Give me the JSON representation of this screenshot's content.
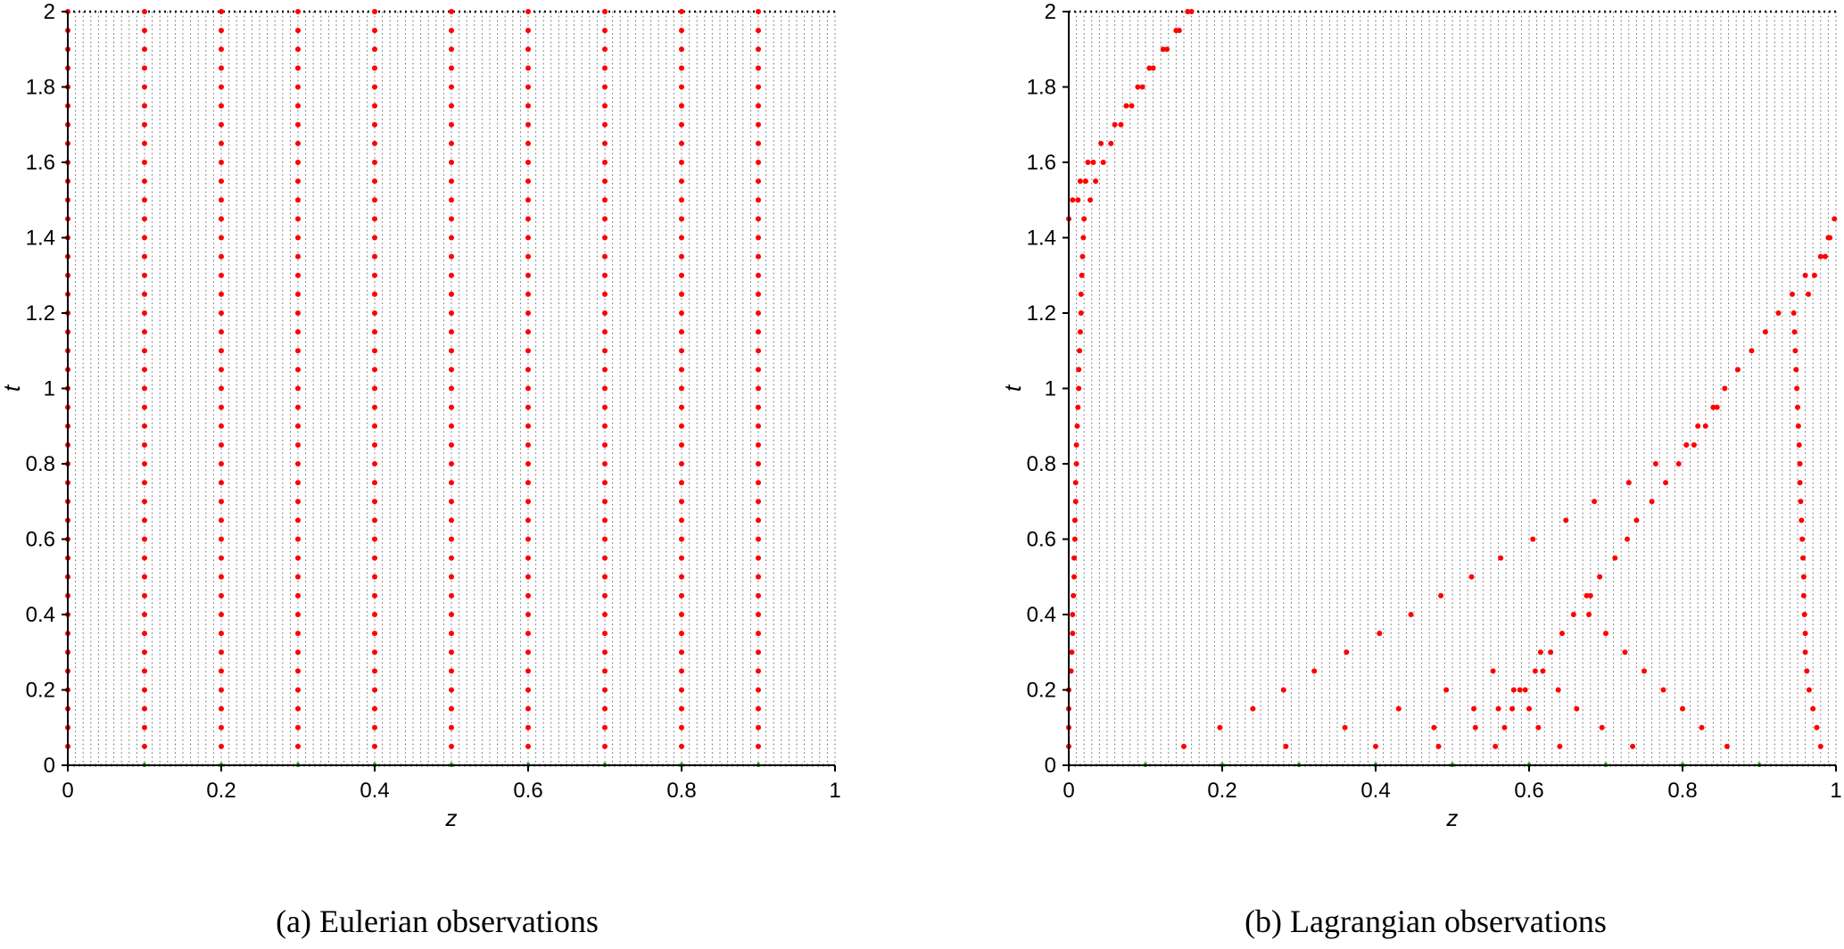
{
  "chart_data": [
    {
      "type": "scatter",
      "panel": "a",
      "caption": "(a) Eulerian observations",
      "xlabel": "z",
      "ylabel": "t",
      "xlim": [
        0,
        1
      ],
      "ylim": [
        0,
        2
      ],
      "xticks": [
        "0",
        "0.2",
        "0.4",
        "0.6",
        "0.8",
        "1"
      ],
      "yticks": [
        "0",
        "0.2",
        "0.4",
        "0.6",
        "0.8",
        "1",
        "1.2",
        "1.4",
        "1.6",
        "1.8",
        "2"
      ],
      "grid": {
        "dx": 0.01,
        "dt": 0.05
      },
      "observation_color": "#ff0000",
      "grid_color": "#555555",
      "sensor_color": "#00aa00",
      "sensor_z": [
        0.1,
        0.2,
        0.3,
        0.4,
        0.5,
        0.6,
        0.7,
        0.8,
        0.9
      ],
      "observations": {
        "z": [
          0.0,
          0.1,
          0.2,
          0.3,
          0.4,
          0.5,
          0.6,
          0.7,
          0.8,
          0.9
        ],
        "t_from": 0.05,
        "t_to": 2.0,
        "t_step": 0.05
      }
    },
    {
      "type": "scatter",
      "panel": "b",
      "caption": "(b) Lagrangian observations",
      "xlabel": "z",
      "ylabel": "t",
      "xlim": [
        0,
        1
      ],
      "ylim": [
        0,
        2
      ],
      "xticks": [
        "0",
        "0.2",
        "0.4",
        "0.6",
        "0.8",
        "1"
      ],
      "yticks": [
        "0",
        "0.2",
        "0.4",
        "0.6",
        "0.8",
        "1",
        "1.2",
        "1.4",
        "1.6",
        "1.8",
        "2"
      ],
      "grid": {
        "dx": 0.01,
        "dt": 0.05
      },
      "observation_color": "#ff0000",
      "grid_color": "#555555",
      "sensor_color": "#00aa00",
      "sensor_z": [
        0.1,
        0.2,
        0.3,
        0.4,
        0.5,
        0.6,
        0.7,
        0.8,
        0.9
      ],
      "observations": [
        [
          0.0,
          0.05
        ],
        [
          0.0,
          0.1
        ],
        [
          0.0,
          0.15
        ],
        [
          0.0,
          0.2
        ],
        [
          0.003,
          0.25
        ],
        [
          0.004,
          0.3
        ],
        [
          0.005,
          0.35
        ],
        [
          0.005,
          0.4
        ],
        [
          0.006,
          0.45
        ],
        [
          0.007,
          0.5
        ],
        [
          0.007,
          0.55
        ],
        [
          0.008,
          0.6
        ],
        [
          0.008,
          0.65
        ],
        [
          0.009,
          0.7
        ],
        [
          0.009,
          0.75
        ],
        [
          0.01,
          0.8
        ],
        [
          0.01,
          0.85
        ],
        [
          0.011,
          0.9
        ],
        [
          0.012,
          0.95
        ],
        [
          0.013,
          1.0
        ],
        [
          0.013,
          1.05
        ],
        [
          0.014,
          1.1
        ],
        [
          0.015,
          1.15
        ],
        [
          0.016,
          1.2
        ],
        [
          0.016,
          1.25
        ],
        [
          0.017,
          1.3
        ],
        [
          0.018,
          1.35
        ],
        [
          0.019,
          1.4
        ],
        [
          0.02,
          1.45
        ],
        [
          0.0,
          1.45
        ],
        [
          0.005,
          1.5
        ],
        [
          0.012,
          1.5
        ],
        [
          0.028,
          1.5
        ],
        [
          0.015,
          1.55
        ],
        [
          0.022,
          1.55
        ],
        [
          0.035,
          1.55
        ],
        [
          0.025,
          1.6
        ],
        [
          0.032,
          1.6
        ],
        [
          0.045,
          1.6
        ],
        [
          0.042,
          1.65
        ],
        [
          0.055,
          1.65
        ],
        [
          0.06,
          1.7
        ],
        [
          0.068,
          1.7
        ],
        [
          0.075,
          1.75
        ],
        [
          0.082,
          1.75
        ],
        [
          0.09,
          1.8
        ],
        [
          0.096,
          1.8
        ],
        [
          0.105,
          1.85
        ],
        [
          0.11,
          1.85
        ],
        [
          0.123,
          1.9
        ],
        [
          0.128,
          1.9
        ],
        [
          0.14,
          1.95
        ],
        [
          0.144,
          1.95
        ],
        [
          0.155,
          2.0
        ],
        [
          0.16,
          2.0
        ],
        [
          0.15,
          0.05
        ],
        [
          0.197,
          0.1
        ],
        [
          0.24,
          0.15
        ],
        [
          0.283,
          0.05
        ],
        [
          0.28,
          0.2
        ],
        [
          0.32,
          0.25
        ],
        [
          0.36,
          0.1
        ],
        [
          0.362,
          0.3
        ],
        [
          0.4,
          0.05
        ],
        [
          0.405,
          0.35
        ],
        [
          0.43,
          0.15
        ],
        [
          0.446,
          0.4
        ],
        [
          0.476,
          0.1
        ],
        [
          0.482,
          0.05
        ],
        [
          0.485,
          0.45
        ],
        [
          0.492,
          0.2
        ],
        [
          0.525,
          0.5
        ],
        [
          0.528,
          0.15
        ],
        [
          0.53,
          0.1
        ],
        [
          0.553,
          0.25
        ],
        [
          0.556,
          0.05
        ],
        [
          0.56,
          0.15
        ],
        [
          0.563,
          0.55
        ],
        [
          0.568,
          0.1
        ],
        [
          0.578,
          0.15
        ],
        [
          0.58,
          0.2
        ],
        [
          0.588,
          0.2
        ],
        [
          0.595,
          0.2
        ],
        [
          0.6,
          0.15
        ],
        [
          0.605,
          0.6
        ],
        [
          0.608,
          0.25
        ],
        [
          0.612,
          0.1
        ],
        [
          0.615,
          0.3
        ],
        [
          0.618,
          0.25
        ],
        [
          0.628,
          0.3
        ],
        [
          0.638,
          0.2
        ],
        [
          0.64,
          0.05
        ],
        [
          0.643,
          0.35
        ],
        [
          0.648,
          0.65
        ],
        [
          0.658,
          0.4
        ],
        [
          0.662,
          0.15
        ],
        [
          0.675,
          0.45
        ],
        [
          0.678,
          0.4
        ],
        [
          0.68,
          0.45
        ],
        [
          0.685,
          0.7
        ],
        [
          0.692,
          0.5
        ],
        [
          0.695,
          0.1
        ],
        [
          0.7,
          0.35
        ],
        [
          0.712,
          0.55
        ],
        [
          0.725,
          0.3
        ],
        [
          0.728,
          0.6
        ],
        [
          0.73,
          0.75
        ],
        [
          0.735,
          0.05
        ],
        [
          0.74,
          0.65
        ],
        [
          0.75,
          0.25
        ],
        [
          0.76,
          0.7
        ],
        [
          0.765,
          0.8
        ],
        [
          0.775,
          0.2
        ],
        [
          0.778,
          0.75
        ],
        [
          0.795,
          0.8
        ],
        [
          0.8,
          0.15
        ],
        [
          0.805,
          0.85
        ],
        [
          0.815,
          0.85
        ],
        [
          0.82,
          0.9
        ],
        [
          0.825,
          0.1
        ],
        [
          0.83,
          0.9
        ],
        [
          0.84,
          0.95
        ],
        [
          0.845,
          0.95
        ],
        [
          0.855,
          1.0
        ],
        [
          0.858,
          0.05
        ],
        [
          0.872,
          1.05
        ],
        [
          0.89,
          1.1
        ],
        [
          0.908,
          1.15
        ],
        [
          0.925,
          1.2
        ],
        [
          0.943,
          1.25
        ],
        [
          0.945,
          1.2
        ],
        [
          0.946,
          1.15
        ],
        [
          0.947,
          1.1
        ],
        [
          0.948,
          1.05
        ],
        [
          0.949,
          1.0
        ],
        [
          0.95,
          0.95
        ],
        [
          0.951,
          0.9
        ],
        [
          0.952,
          0.85
        ],
        [
          0.953,
          0.8
        ],
        [
          0.953,
          0.75
        ],
        [
          0.954,
          0.7
        ],
        [
          0.955,
          0.65
        ],
        [
          0.956,
          0.6
        ],
        [
          0.957,
          0.55
        ],
        [
          0.958,
          0.5
        ],
        [
          0.958,
          0.45
        ],
        [
          0.959,
          0.4
        ],
        [
          0.96,
          0.35
        ],
        [
          0.96,
          0.3
        ],
        [
          0.96,
          1.3
        ],
        [
          0.962,
          0.25
        ],
        [
          0.964,
          1.25
        ],
        [
          0.965,
          0.2
        ],
        [
          0.97,
          0.15
        ],
        [
          0.972,
          1.3
        ],
        [
          0.975,
          0.1
        ],
        [
          0.98,
          1.35
        ],
        [
          0.98,
          0.05
        ],
        [
          0.986,
          1.35
        ],
        [
          0.99,
          1.4
        ],
        [
          0.992,
          1.4
        ],
        [
          0.998,
          1.45
        ]
      ]
    }
  ]
}
